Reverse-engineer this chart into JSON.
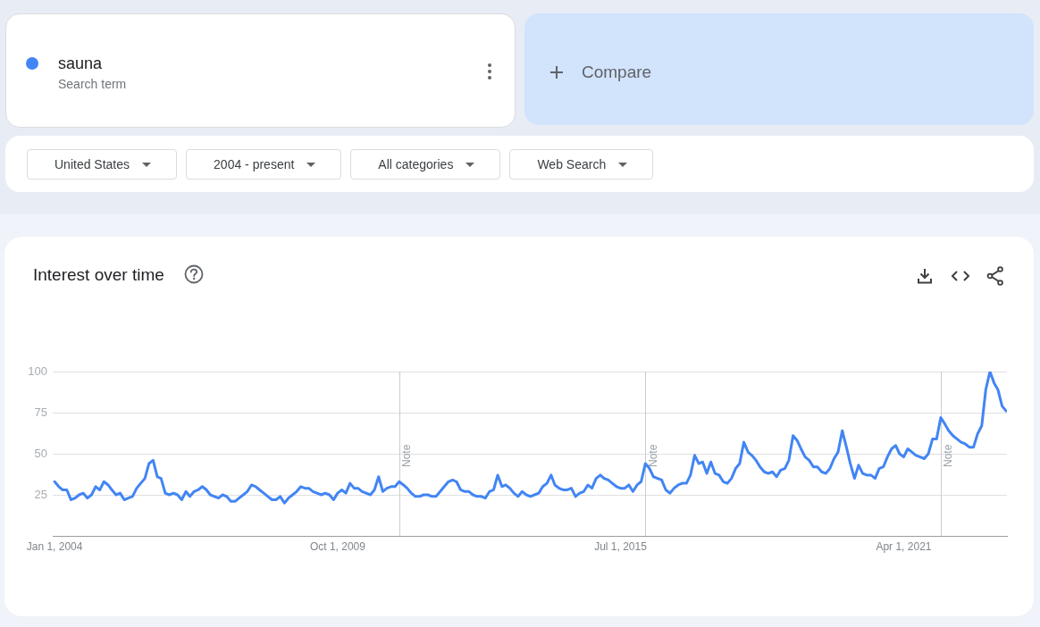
{
  "chart_data": {
    "type": "line",
    "title": "Interest over time",
    "annotations": [
      "Search term",
      "Compare",
      "United States",
      "2004 - present",
      "All categories",
      "Web Search"
    ],
    "x": [
      "2004-01",
      "2004-02",
      "2004-03",
      "2004-04",
      "2004-05",
      "2004-06",
      "2004-07",
      "2004-08",
      "2004-09",
      "2004-10",
      "2004-11",
      "2004-12",
      "2005-01",
      "2005-02",
      "2005-03",
      "2005-04",
      "2005-05",
      "2005-06",
      "2005-07",
      "2005-08",
      "2005-09",
      "2005-10",
      "2005-11",
      "2005-12",
      "2006-01",
      "2006-02",
      "2006-03",
      "2006-04",
      "2006-05",
      "2006-06",
      "2006-07",
      "2006-08",
      "2006-09",
      "2006-10",
      "2006-11",
      "2006-12",
      "2007-01",
      "2007-02",
      "2007-03",
      "2007-04",
      "2007-05",
      "2007-06",
      "2007-07",
      "2007-08",
      "2007-09",
      "2007-10",
      "2007-11",
      "2007-12",
      "2008-01",
      "2008-02",
      "2008-03",
      "2008-04",
      "2008-05",
      "2008-06",
      "2008-07",
      "2008-08",
      "2008-09",
      "2008-10",
      "2008-11",
      "2008-12",
      "2009-01",
      "2009-02",
      "2009-03",
      "2009-04",
      "2009-05",
      "2009-06",
      "2009-07",
      "2009-08",
      "2009-09",
      "2009-10",
      "2009-11",
      "2009-12",
      "2010-01",
      "2010-02",
      "2010-03",
      "2010-04",
      "2010-05",
      "2010-06",
      "2010-07",
      "2010-08",
      "2010-09",
      "2010-10",
      "2010-11",
      "2010-12",
      "2011-01",
      "2011-02",
      "2011-03",
      "2011-04",
      "2011-05",
      "2011-06",
      "2011-07",
      "2011-08",
      "2011-09",
      "2011-10",
      "2011-11",
      "2011-12",
      "2012-01",
      "2012-02",
      "2012-03",
      "2012-04",
      "2012-05",
      "2012-06",
      "2012-07",
      "2012-08",
      "2012-09",
      "2012-10",
      "2012-11",
      "2012-12",
      "2013-01",
      "2013-02",
      "2013-03",
      "2013-04",
      "2013-05",
      "2013-06",
      "2013-07",
      "2013-08",
      "2013-09",
      "2013-10",
      "2013-11",
      "2013-12",
      "2014-01",
      "2014-02",
      "2014-03",
      "2014-04",
      "2014-05",
      "2014-06",
      "2014-07",
      "2014-08",
      "2014-09",
      "2014-10",
      "2014-11",
      "2014-12",
      "2015-01",
      "2015-02",
      "2015-03",
      "2015-04",
      "2015-05",
      "2015-06",
      "2015-07",
      "2015-08",
      "2015-09",
      "2015-10",
      "2015-11",
      "2015-12",
      "2016-01",
      "2016-02",
      "2016-03",
      "2016-04",
      "2016-05",
      "2016-06",
      "2016-07",
      "2016-08",
      "2016-09",
      "2016-10",
      "2016-11",
      "2016-12",
      "2017-01",
      "2017-02",
      "2017-03",
      "2017-04",
      "2017-05",
      "2017-06",
      "2017-07",
      "2017-08",
      "2017-09",
      "2017-10",
      "2017-11",
      "2017-12",
      "2018-01",
      "2018-02",
      "2018-03",
      "2018-04",
      "2018-05",
      "2018-06",
      "2018-07",
      "2018-08",
      "2018-09",
      "2018-10",
      "2018-11",
      "2018-12",
      "2019-01",
      "2019-02",
      "2019-03",
      "2019-04",
      "2019-05",
      "2019-06",
      "2019-07",
      "2019-08",
      "2019-09",
      "2019-10",
      "2019-11",
      "2019-12",
      "2020-01",
      "2020-02",
      "2020-03",
      "2020-04",
      "2020-05",
      "2020-06",
      "2020-07",
      "2020-08",
      "2020-09",
      "2020-10",
      "2020-11",
      "2020-12",
      "2021-01",
      "2021-02",
      "2021-03",
      "2021-04",
      "2021-05",
      "2021-06",
      "2021-07",
      "2021-08",
      "2021-09",
      "2021-10",
      "2021-11",
      "2021-12",
      "2022-01",
      "2022-02",
      "2022-03",
      "2022-04",
      "2022-05",
      "2022-06",
      "2022-07",
      "2022-08",
      "2022-09",
      "2022-10",
      "2022-11",
      "2022-12",
      "2023-01",
      "2023-02",
      "2023-03",
      "2023-04",
      "2023-05"
    ],
    "series": [
      {
        "name": "sauna",
        "color": "#4285f4",
        "values": [
          33,
          30,
          28,
          28,
          22,
          23,
          25,
          26,
          23,
          25,
          30,
          28,
          33,
          31,
          28,
          25,
          26,
          22,
          23,
          24,
          29,
          32,
          35,
          44,
          46,
          36,
          35,
          26,
          25,
          26,
          25,
          22,
          27,
          24,
          27,
          28,
          30,
          28,
          25,
          24,
          23,
          25,
          24,
          21,
          21,
          23,
          25,
          27,
          31,
          30,
          28,
          26,
          24,
          22,
          22,
          24,
          20,
          23,
          25,
          27,
          30,
          29,
          29,
          27,
          26,
          25,
          26,
          25,
          22,
          26,
          28,
          26,
          32,
          29,
          29,
          27,
          26,
          25,
          28,
          36,
          27,
          29,
          30,
          30,
          33,
          31,
          29,
          26,
          24,
          24,
          25,
          25,
          24,
          24,
          27,
          30,
          33,
          34,
          33,
          28,
          27,
          27,
          25,
          24,
          24,
          23,
          27,
          28,
          37,
          30,
          31,
          29,
          26,
          24,
          27,
          25,
          24,
          25,
          26,
          30,
          32,
          37,
          31,
          29,
          28,
          28,
          29,
          24,
          26,
          27,
          31,
          29,
          35,
          37,
          35,
          34,
          32,
          30,
          29,
          29,
          31,
          27,
          31,
          33,
          44,
          41,
          36,
          35,
          34,
          28,
          26,
          29,
          31,
          32,
          32,
          37,
          49,
          44,
          45,
          38,
          45,
          38,
          37,
          33,
          32,
          35,
          41,
          44,
          57,
          51,
          49,
          46,
          42,
          39,
          38,
          39,
          36,
          40,
          41,
          46,
          61,
          58,
          53,
          48,
          46,
          42,
          42,
          39,
          38,
          41,
          47,
          51,
          64,
          54,
          44,
          35,
          43,
          38,
          37,
          37,
          35,
          41,
          42,
          48,
          53,
          55,
          50,
          48,
          53,
          51,
          49,
          48,
          47,
          50,
          59,
          59,
          72,
          68,
          64,
          61,
          59,
          57,
          56,
          54,
          54,
          62,
          67,
          89,
          100,
          93,
          89,
          79,
          76
        ]
      }
    ],
    "xlim": [
      "2003-12-18",
      "2023-05-07"
    ],
    "xticks": [
      {
        "value": "2004-01-01",
        "label": "Jan 1, 2004"
      },
      {
        "value": "2009-10-01",
        "label": "Oct 1, 2009"
      },
      {
        "value": "2015-07-01",
        "label": "Jul 1, 2015"
      },
      {
        "value": "2021-04-01",
        "label": "Apr 1, 2021"
      }
    ],
    "ylim": [
      0,
      100
    ],
    "yticks": [
      25,
      50,
      75,
      100
    ],
    "ref_lines": [
      {
        "axis": "x",
        "value": "2011-01-01",
        "label": "Note",
        "color": "#cccccc"
      },
      {
        "axis": "x",
        "value": "2016-01-01",
        "label": "Note",
        "color": "#cccccc"
      },
      {
        "axis": "x",
        "value": "2022-01-01",
        "label": "Note",
        "color": "#cccccc"
      }
    ],
    "grid": "y",
    "legend": "top left"
  }
}
